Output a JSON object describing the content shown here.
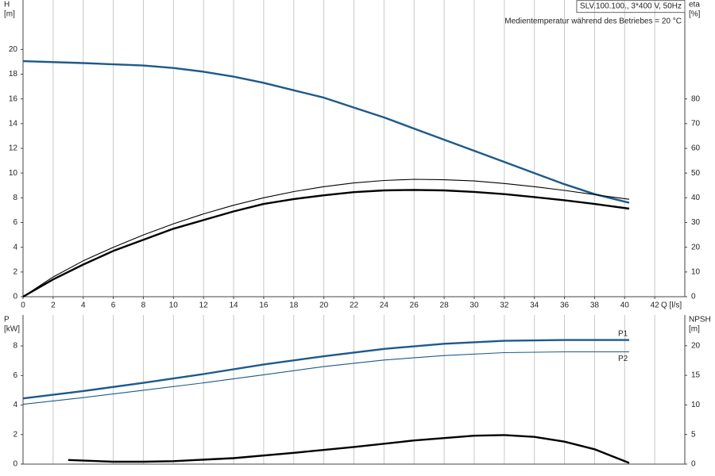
{
  "chart_data": [
    {
      "type": "line",
      "title": "SLV.100.100., 3*400 V, 50Hz",
      "subtitle": "Medientemperatur während des Betriebes = 20 °C",
      "y_label": "H",
      "y_unit": "[m]",
      "y2_label": "eta",
      "y2_unit": "[%]",
      "x_label": "Q [l/s]",
      "xlim": [
        0,
        44
      ],
      "xticks": [
        0,
        2,
        4,
        6,
        8,
        10,
        12,
        14,
        16,
        18,
        20,
        22,
        24,
        26,
        28,
        30,
        32,
        34,
        36,
        38,
        40,
        42
      ],
      "ylim": [
        0,
        24
      ],
      "yticks": [
        0,
        2,
        4,
        6,
        8,
        10,
        12,
        14,
        16,
        18,
        20
      ],
      "y2lim": [
        0,
        120
      ],
      "y2ticks": [
        0,
        10,
        20,
        30,
        40,
        50,
        60,
        70,
        80
      ],
      "grid": "x",
      "series": [
        {
          "color": "#1c5a8c",
          "width": "thick",
          "x": [
            0,
            4,
            8,
            10,
            12,
            14,
            16,
            18,
            20,
            22,
            24,
            26,
            28,
            30,
            32,
            34,
            36,
            38,
            40.3
          ],
          "values": [
            19.05,
            18.9,
            18.7,
            18.5,
            18.2,
            17.8,
            17.3,
            16.7,
            16.1,
            15.3,
            14.5,
            13.6,
            12.7,
            11.8,
            10.9,
            10.0,
            9.1,
            8.3,
            7.6
          ]
        },
        {
          "color": "#000000",
          "width": "thin",
          "axis": "y2",
          "x": [
            0,
            2,
            4,
            6,
            8,
            10,
            12,
            14,
            16,
            18,
            20,
            22,
            24,
            26,
            28,
            30,
            32,
            34,
            36,
            38,
            40.3
          ],
          "values": [
            0,
            8,
            14.5,
            20,
            25,
            29.5,
            33.5,
            37,
            40,
            42.5,
            44.5,
            46,
            47,
            47.5,
            47.3,
            46.8,
            45.8,
            44.5,
            43,
            41.3,
            39.4
          ]
        },
        {
          "color": "#000000",
          "width": "thick",
          "axis": "y2",
          "x": [
            0,
            2,
            4,
            6,
            8,
            10,
            12,
            14,
            16,
            18,
            20,
            22,
            24,
            26,
            28,
            30,
            32,
            34,
            36,
            38,
            40.3
          ],
          "values": [
            0,
            7,
            13,
            18.5,
            23,
            27.5,
            31,
            34.5,
            37.5,
            39.5,
            41,
            42.3,
            43,
            43.2,
            43,
            42.4,
            41.5,
            40.3,
            39,
            37.5,
            35.6
          ]
        }
      ]
    },
    {
      "type": "line",
      "y_label": "P",
      "y_unit": "[kW]",
      "y2_label": "NPSH",
      "y2_unit": "[m]",
      "xlim": [
        0,
        44
      ],
      "ylim": [
        0,
        10.1
      ],
      "yticks": [
        0,
        2,
        4,
        6,
        8
      ],
      "y2lim": [
        0,
        25.2
      ],
      "y2ticks": [
        0,
        5,
        10,
        15,
        20
      ],
      "grid": "x",
      "series": [
        {
          "name": "P1",
          "color": "#1c5a8c",
          "width": "thick",
          "x": [
            0,
            4,
            8,
            12,
            16,
            20,
            24,
            28,
            32,
            36,
            40.3
          ],
          "values": [
            4.45,
            4.95,
            5.5,
            6.1,
            6.75,
            7.3,
            7.8,
            8.15,
            8.35,
            8.4,
            8.4
          ]
        },
        {
          "name": "P2",
          "color": "#1c5a8c",
          "width": "thin",
          "x": [
            0,
            4,
            8,
            12,
            16,
            20,
            24,
            28,
            32,
            36,
            40.3
          ],
          "values": [
            4.05,
            4.5,
            5.0,
            5.5,
            6.05,
            6.6,
            7.05,
            7.35,
            7.55,
            7.6,
            7.6
          ]
        },
        {
          "color": "#000000",
          "width": "thick",
          "axis": "y2",
          "x": [
            3,
            6,
            8,
            10,
            14,
            18,
            22,
            26,
            30,
            32,
            34,
            36,
            38,
            40.3
          ],
          "values": [
            0.7,
            0.4,
            0.4,
            0.5,
            1.0,
            1.9,
            2.9,
            4.0,
            4.8,
            4.9,
            4.6,
            3.8,
            2.5,
            0.2
          ]
        }
      ]
    }
  ]
}
